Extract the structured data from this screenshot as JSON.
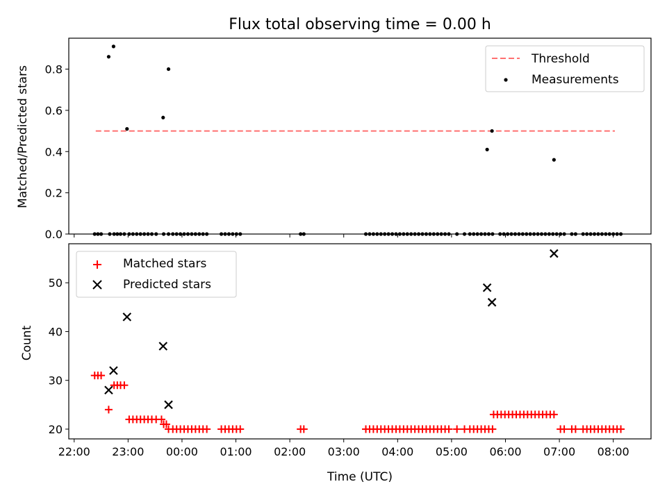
{
  "chart_data": {
    "type": "scatter",
    "title": "Flux total observing time = 0.00 h",
    "colors": {
      "threshold": "#ff7070",
      "measurements": "#000000",
      "matched": "#ff0000",
      "predicted": "#000000"
    },
    "x_axis": {
      "label": "Time (UTC)",
      "unit": "hours since 22:00 UTC",
      "range": [
        -0.1,
        10.7
      ],
      "ticks": [
        {
          "value": 0,
          "label": "22:00"
        },
        {
          "value": 1,
          "label": "23:00"
        },
        {
          "value": 2,
          "label": "00:00"
        },
        {
          "value": 3,
          "label": "01:00"
        },
        {
          "value": 4,
          "label": "02:00"
        },
        {
          "value": 5,
          "label": "03:00"
        },
        {
          "value": 6,
          "label": "04:00"
        },
        {
          "value": 7,
          "label": "05:00"
        },
        {
          "value": 8,
          "label": "06:00"
        },
        {
          "value": 9,
          "label": "07:00"
        },
        {
          "value": 10,
          "label": "08:00"
        }
      ]
    },
    "panels": [
      {
        "ylabel": "Matched/Predicted stars",
        "ylim": [
          0,
          0.95
        ],
        "yticks": [
          "0.0",
          "0.2",
          "0.4",
          "0.6",
          "0.8"
        ],
        "ytick_values": [
          0,
          0.2,
          0.4,
          0.6,
          0.8
        ],
        "legend": {
          "position": "upper right",
          "entries": [
            "Threshold",
            "Measurements"
          ]
        },
        "threshold": {
          "name": "Threshold",
          "y": 0.5,
          "x_range": [
            0.4,
            10.03
          ]
        },
        "measurements": {
          "name": "Measurements",
          "x": [
            0.38,
            0.44,
            0.5,
            0.66,
            0.74,
            0.8,
            0.86,
            0.93,
            1.02,
            1.09,
            1.16,
            1.23,
            1.3,
            1.37,
            1.44,
            1.52,
            1.66,
            1.75,
            1.83,
            1.9,
            1.97,
            2.04,
            2.11,
            2.18,
            2.25,
            2.32,
            2.39,
            2.46,
            2.73,
            2.8,
            2.87,
            2.94,
            3.01,
            3.08,
            4.2,
            4.26,
            5.41,
            5.48,
            5.55,
            5.62,
            5.69,
            5.76,
            5.83,
            5.9,
            5.97,
            6.04,
            6.11,
            6.18,
            6.25,
            6.32,
            6.39,
            6.46,
            6.53,
            6.6,
            6.67,
            6.74,
            6.81,
            6.88,
            6.95,
            7.1,
            7.24,
            7.34,
            7.41,
            7.48,
            7.55,
            7.62,
            7.69,
            7.76,
            7.9,
            7.97,
            8.04,
            8.11,
            8.18,
            8.25,
            8.32,
            8.39,
            8.46,
            8.53,
            8.6,
            8.67,
            8.74,
            8.81,
            8.88,
            8.95,
            9.02,
            9.09,
            9.23,
            9.3,
            9.44,
            9.51,
            9.58,
            9.65,
            9.72,
            9.79,
            9.86,
            9.93,
            10.0,
            10.07,
            10.14,
            0.64,
            0.73,
            0.98,
            1.65,
            1.75,
            7.66,
            7.75,
            8.9
          ],
          "y": [
            0,
            0,
            0,
            0,
            0,
            0,
            0,
            0,
            0,
            0,
            0,
            0,
            0,
            0,
            0,
            0,
            0,
            0,
            0,
            0,
            0,
            0,
            0,
            0,
            0,
            0,
            0,
            0,
            0,
            0,
            0,
            0,
            0,
            0,
            0,
            0,
            0,
            0,
            0,
            0,
            0,
            0,
            0,
            0,
            0,
            0,
            0,
            0,
            0,
            0,
            0,
            0,
            0,
            0,
            0,
            0,
            0,
            0,
            0,
            0,
            0,
            0,
            0,
            0,
            0,
            0,
            0,
            0,
            0,
            0,
            0,
            0,
            0,
            0,
            0,
            0,
            0,
            0,
            0,
            0,
            0,
            0,
            0,
            0,
            0,
            0,
            0,
            0,
            0,
            0,
            0,
            0,
            0,
            0,
            0,
            0,
            0,
            0,
            0,
            0.86,
            0.91,
            0.51,
            0.565,
            0.8,
            0.41,
            0.5,
            0.36
          ]
        }
      },
      {
        "ylabel": "Count",
        "ylim": [
          18,
          58
        ],
        "yticks": [
          "20",
          "30",
          "40",
          "50"
        ],
        "ytick_values": [
          20,
          30,
          40,
          50
        ],
        "legend": {
          "position": "upper left",
          "entries": [
            "Matched stars",
            "Predicted stars"
          ]
        },
        "matched": {
          "name": "Matched stars",
          "x": [
            0.38,
            0.44,
            0.5,
            0.64,
            0.74,
            0.8,
            0.86,
            0.93,
            1.02,
            1.09,
            1.16,
            1.23,
            1.3,
            1.37,
            1.44,
            1.52,
            1.62,
            1.66,
            1.71,
            1.75,
            1.83,
            1.9,
            1.97,
            2.04,
            2.11,
            2.18,
            2.25,
            2.32,
            2.39,
            2.46,
            2.73,
            2.8,
            2.87,
            2.94,
            3.01,
            3.08,
            4.2,
            4.26,
            5.41,
            5.48,
            5.55,
            5.62,
            5.69,
            5.76,
            5.83,
            5.9,
            5.97,
            6.04,
            6.11,
            6.18,
            6.25,
            6.32,
            6.39,
            6.46,
            6.53,
            6.6,
            6.67,
            6.74,
            6.81,
            6.88,
            6.95,
            7.1,
            7.24,
            7.34,
            7.41,
            7.48,
            7.55,
            7.62,
            7.69,
            7.76,
            7.78,
            7.85,
            7.92,
            7.99,
            8.06,
            8.13,
            8.2,
            8.27,
            8.34,
            8.41,
            8.48,
            8.55,
            8.62,
            8.69,
            8.76,
            8.83,
            8.9,
            9.02,
            9.09,
            9.23,
            9.3,
            9.44,
            9.51,
            9.58,
            9.65,
            9.72,
            9.79,
            9.86,
            9.93,
            10.0,
            10.07,
            10.14
          ],
          "y": [
            31,
            31,
            31,
            24,
            29,
            29,
            29,
            29,
            22,
            22,
            22,
            22,
            22,
            22,
            22,
            22,
            22,
            21,
            21,
            20,
            20,
            20,
            20,
            20,
            20,
            20,
            20,
            20,
            20,
            20,
            20,
            20,
            20,
            20,
            20,
            20,
            20,
            20,
            20,
            20,
            20,
            20,
            20,
            20,
            20,
            20,
            20,
            20,
            20,
            20,
            20,
            20,
            20,
            20,
            20,
            20,
            20,
            20,
            20,
            20,
            20,
            20,
            20,
            20,
            20,
            20,
            20,
            20,
            20,
            20,
            23,
            23,
            23,
            23,
            23,
            23,
            23,
            23,
            23,
            23,
            23,
            23,
            23,
            23,
            23,
            23,
            23,
            20,
            20,
            20,
            20,
            20,
            20,
            20,
            20,
            20,
            20,
            20,
            20,
            20,
            20,
            20
          ]
        },
        "predicted": {
          "name": "Predicted stars",
          "x": [
            0.64,
            0.73,
            0.98,
            1.65,
            1.75,
            7.66,
            7.75,
            8.9
          ],
          "y": [
            28,
            32,
            43,
            37,
            25,
            49,
            46,
            56
          ]
        }
      }
    ]
  }
}
